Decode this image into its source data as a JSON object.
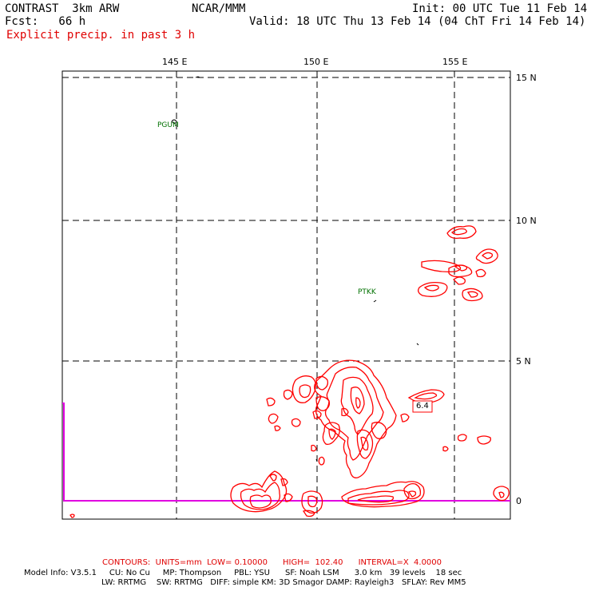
{
  "header": {
    "model": "CONTRAST  3km ARW",
    "center": "NCAR/MMM",
    "init": "Init: 00 UTC Tue 11 Feb 14",
    "fcst": "Fcst:   66 h",
    "valid": "Valid: 18 UTC Thu 13 Feb 14 (04 ChT Fri 14 Feb 14)",
    "field": "Explicit precip. in past 3 h"
  },
  "axes": {
    "lon_labels": [
      "145 E",
      "150 E",
      "155 E"
    ],
    "lat_labels": [
      "15 N",
      "10 N",
      "5 N",
      "0"
    ]
  },
  "stations": [
    {
      "id": "PGUM"
    },
    {
      "id": "PTKK"
    }
  ],
  "contour_label": "6.4",
  "footer": {
    "contours": "CONTOURS:  UNITS=mm  LOW= 0.10000      HIGH=  102.40      INTERVAL=X  4.0000",
    "model_info_1": "Model Info: V3.5.1     CU: No Cu     MP: Thompson     PBL: YSU      SF: Noah LSM      3.0 km   39 levels    18 sec",
    "model_info_2": "LW: RRTMG    SW: RRTMG   DIFF: simple KM: 3D Smagor DAMP: Rayleigh3   SFLAY: Rev MM5"
  },
  "colors": {
    "precip": "#ff0000",
    "boundary": "#e000e0",
    "station": "#007000",
    "grid": "#000000"
  }
}
